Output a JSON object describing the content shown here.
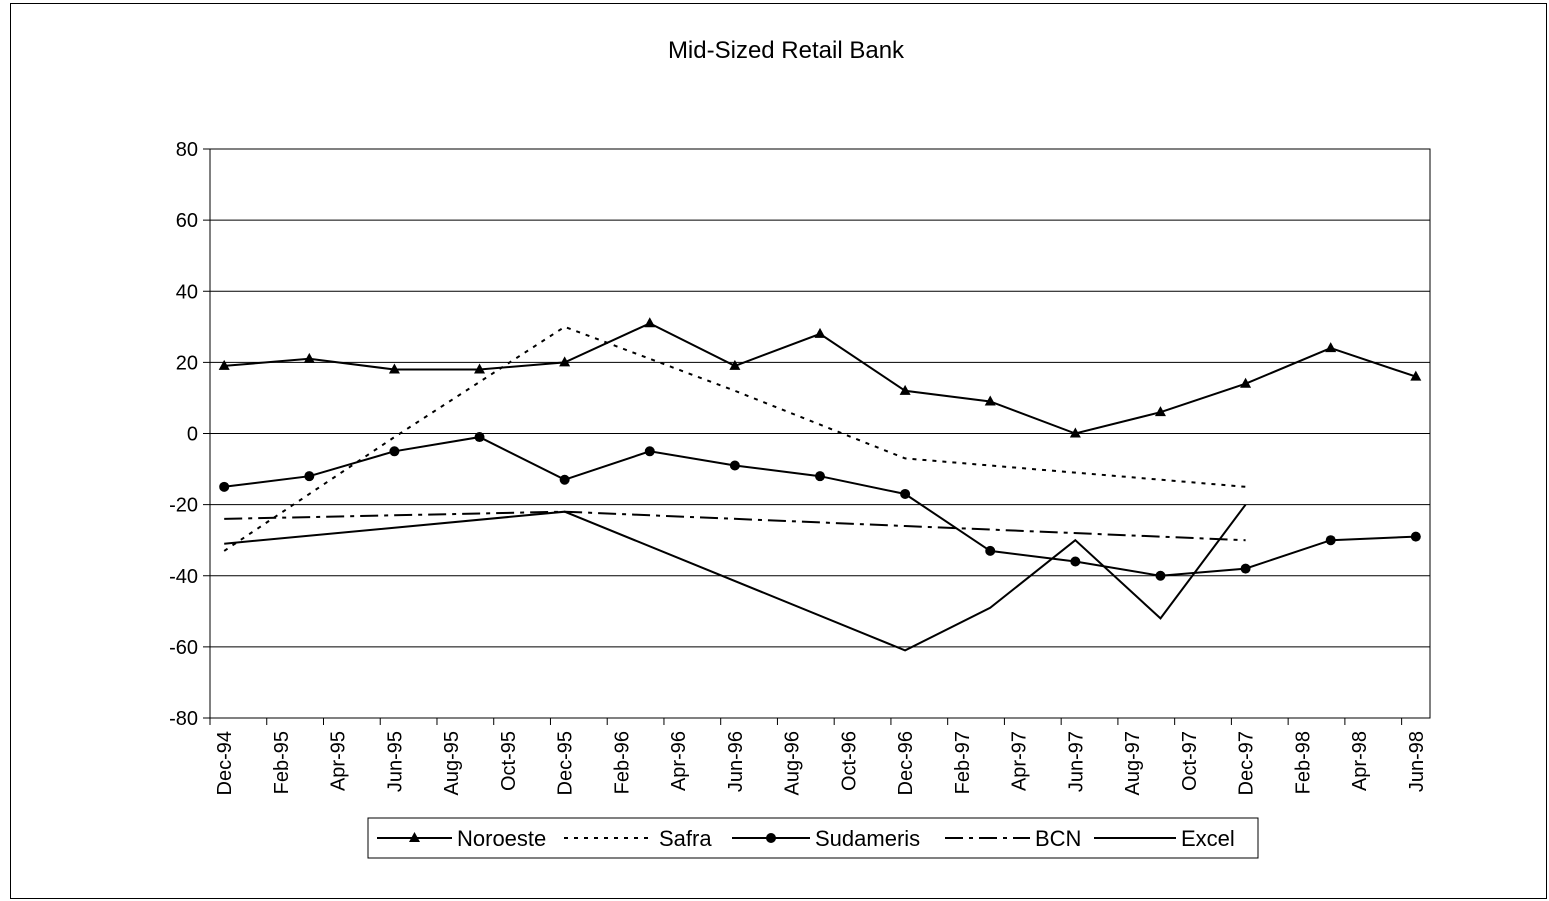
{
  "chart_data": {
    "type": "line",
    "title": "Mid-Sized Retail Bank",
    "xlabel": "",
    "ylabel": "",
    "x_ticks": [
      "Dec-94",
      "Feb-95",
      "Apr-95",
      "Jun-95",
      "Aug-95",
      "Oct-95",
      "Dec-95",
      "Feb-96",
      "Apr-96",
      "Jun-96",
      "Aug-96",
      "Oct-96",
      "Dec-96",
      "Feb-97",
      "Apr-97",
      "Jun-97",
      "Aug-97",
      "Oct-97",
      "Dec-97",
      "Feb-98",
      "Apr-98",
      "Jun-98"
    ],
    "y_ticks": [
      "80",
      "60",
      "40",
      "20",
      "0",
      "-20",
      "-40",
      "-60",
      "-80"
    ],
    "xlim": [
      "1994-12-01",
      "1998-06-01"
    ],
    "ylim": [
      -80,
      80
    ],
    "grid": "horizontal",
    "legend_position": "bottom",
    "series": [
      {
        "name": "Noroeste",
        "style": "solid",
        "marker": "triangle",
        "points": [
          [
            "1994-12-01",
            19
          ],
          [
            "1995-03-01",
            21
          ],
          [
            "1995-06-01",
            18
          ],
          [
            "1995-09-01",
            18
          ],
          [
            "1995-12-01",
            20
          ],
          [
            "1996-03-01",
            31
          ],
          [
            "1996-06-01",
            19
          ],
          [
            "1996-09-01",
            28
          ],
          [
            "1996-12-01",
            12
          ],
          [
            "1997-03-01",
            9
          ],
          [
            "1997-06-01",
            0
          ],
          [
            "1997-09-01",
            6
          ],
          [
            "1997-12-01",
            14
          ],
          [
            "1998-03-01",
            24
          ],
          [
            "1998-06-01",
            16
          ]
        ]
      },
      {
        "name": "Safra",
        "style": "dotted",
        "marker": "none",
        "points": [
          [
            "1994-12-01",
            -33
          ],
          [
            "1995-06-01",
            -1
          ],
          [
            "1995-12-01",
            30
          ],
          [
            "1996-06-01",
            12
          ],
          [
            "1996-12-01",
            -7
          ],
          [
            "1997-06-01",
            -11
          ],
          [
            "1997-12-01",
            -15
          ]
        ]
      },
      {
        "name": "Sudameris",
        "style": "solid",
        "marker": "circle",
        "points": [
          [
            "1994-12-01",
            -15
          ],
          [
            "1995-03-01",
            -12
          ],
          [
            "1995-06-01",
            -5
          ],
          [
            "1995-09-01",
            -1
          ],
          [
            "1995-12-01",
            -13
          ],
          [
            "1996-03-01",
            -5
          ],
          [
            "1996-06-01",
            -9
          ],
          [
            "1996-09-01",
            -12
          ],
          [
            "1996-12-01",
            -17
          ],
          [
            "1997-03-01",
            -33
          ],
          [
            "1997-06-01",
            -36
          ],
          [
            "1997-09-01",
            -40
          ],
          [
            "1997-12-01",
            -38
          ],
          [
            "1998-03-01",
            -30
          ],
          [
            "1998-06-01",
            -29
          ]
        ]
      },
      {
        "name": "BCN",
        "style": "dashdot",
        "marker": "none",
        "points": [
          [
            "1994-12-01",
            -24
          ],
          [
            "1995-12-01",
            -22
          ],
          [
            "1996-12-01",
            -26
          ],
          [
            "1997-12-01",
            -30
          ]
        ]
      },
      {
        "name": "Excel",
        "style": "solid",
        "marker": "none",
        "points": [
          [
            "1994-12-01",
            -31
          ],
          [
            "1995-12-01",
            -22
          ],
          [
            "1996-12-01",
            -61
          ],
          [
            "1997-03-01",
            -49
          ],
          [
            "1997-06-01",
            -30
          ],
          [
            "1997-09-01",
            -52
          ],
          [
            "1997-12-01",
            -20
          ]
        ]
      }
    ]
  }
}
